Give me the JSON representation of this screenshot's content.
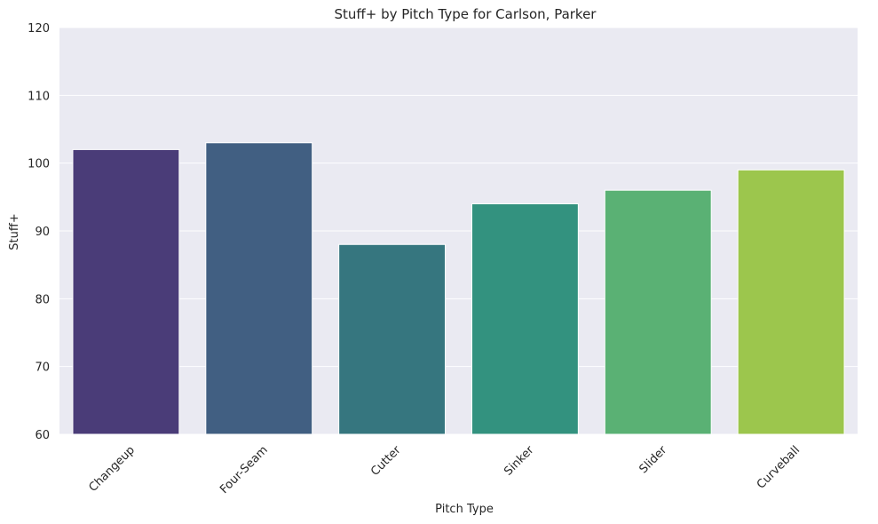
{
  "chart_data": {
    "type": "bar",
    "title": "Stuff+ by Pitch Type for Carlson, Parker",
    "xlabel": "Pitch Type",
    "ylabel": "Stuff+",
    "categories": [
      "Changeup",
      "Four-Seam",
      "Cutter",
      "Sinker",
      "Slider",
      "Curveball"
    ],
    "values": [
      102,
      103,
      88,
      94,
      96,
      99
    ],
    "colors": [
      "#4a3c78",
      "#415f82",
      "#36767f",
      "#33927f",
      "#5ab174",
      "#9cc64d"
    ],
    "ylim": [
      60,
      120
    ],
    "yticks": [
      60,
      70,
      80,
      90,
      100,
      110,
      120
    ],
    "grid": "horizontal",
    "background": "#eaeaf2",
    "legend": "none"
  }
}
